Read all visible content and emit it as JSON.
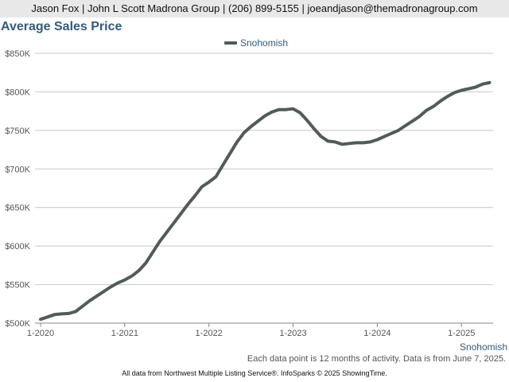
{
  "header": {
    "contact_line": "Jason Fox | John L Scott Madrona Group | (206) 899-5155 | joeandjason@themadronagroup.com"
  },
  "footer": {
    "note": "Each data point is 12 months of activity. Data is from June 7, 2025.",
    "source": "All data from Northwest Multiple Listing Service®. InfoSparks © 2025 ShowingTime."
  },
  "chart_data": {
    "type": "line",
    "title": "Average Sales Price",
    "xlabel": "",
    "ylabel": "",
    "x_tick_labels": [
      "1-2020",
      "1-2021",
      "1-2022",
      "1-2023",
      "1-2024",
      "1-2025"
    ],
    "y_tick_labels": [
      "$500K",
      "$550K",
      "$600K",
      "$650K",
      "$700K",
      "$750K",
      "$800K",
      "$850K"
    ],
    "ylim": [
      500000,
      850000
    ],
    "grid": "horizontal",
    "legend_position": "top-center",
    "x_end_label": "Snohomish",
    "x": [
      "2020-01",
      "2020-02",
      "2020-03",
      "2020-04",
      "2020-05",
      "2020-06",
      "2020-07",
      "2020-08",
      "2020-09",
      "2020-10",
      "2020-11",
      "2020-12",
      "2021-01",
      "2021-02",
      "2021-03",
      "2021-04",
      "2021-05",
      "2021-06",
      "2021-07",
      "2021-08",
      "2021-09",
      "2021-10",
      "2021-11",
      "2021-12",
      "2022-01",
      "2022-02",
      "2022-03",
      "2022-04",
      "2022-05",
      "2022-06",
      "2022-07",
      "2022-08",
      "2022-09",
      "2022-10",
      "2022-11",
      "2022-12",
      "2023-01",
      "2023-02",
      "2023-03",
      "2023-04",
      "2023-05",
      "2023-06",
      "2023-07",
      "2023-08",
      "2023-09",
      "2023-10",
      "2023-11",
      "2023-12",
      "2024-01",
      "2024-02",
      "2024-03",
      "2024-04",
      "2024-05",
      "2024-06",
      "2024-07",
      "2024-08",
      "2024-09",
      "2024-10",
      "2024-11",
      "2024-12",
      "2025-01",
      "2025-02",
      "2025-03",
      "2025-04",
      "2025-05"
    ],
    "series": [
      {
        "name": "Snohomish",
        "color": "#515b5a",
        "values": [
          505000,
          508000,
          511000,
          512000,
          512500,
          515000,
          522000,
          529000,
          535000,
          541000,
          547000,
          552000,
          556000,
          561000,
          568000,
          578000,
          592000,
          606000,
          618000,
          630000,
          642000,
          654000,
          665000,
          677000,
          683000,
          690000,
          705000,
          720000,
          735000,
          747000,
          755000,
          762000,
          769000,
          774000,
          777000,
          777000,
          778000,
          773000,
          763000,
          752000,
          742000,
          736000,
          735000,
          732000,
          733000,
          734000,
          734000,
          735000,
          738000,
          742000,
          746000,
          750000,
          756000,
          762000,
          768000,
          776000,
          781000,
          788000,
          794000,
          799000,
          802000,
          804000,
          806000,
          810000,
          812000
        ]
      }
    ]
  }
}
